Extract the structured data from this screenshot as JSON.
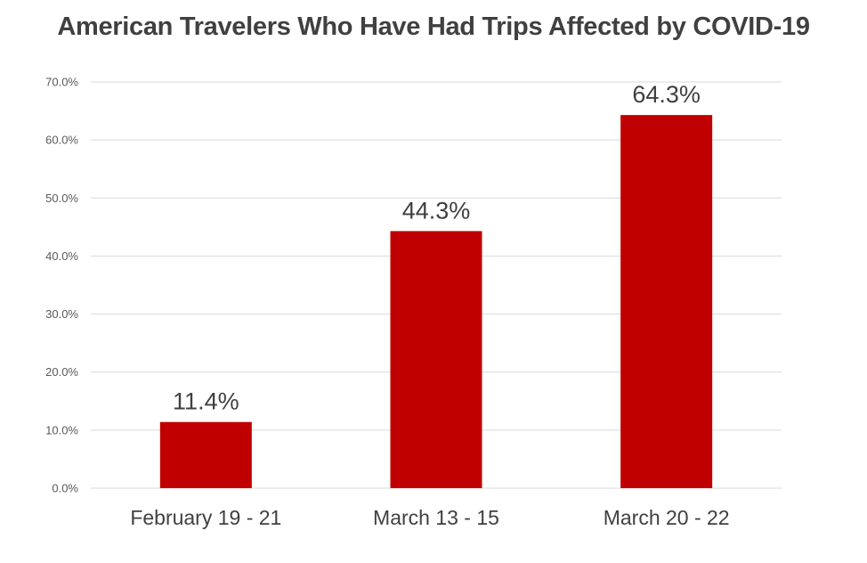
{
  "chart_data": {
    "type": "bar",
    "title": "American Travelers Who Have Had Trips Affected by COVID-19",
    "xlabel": "",
    "ylabel": "",
    "categories": [
      "February 19 - 21",
      "March 13 - 15",
      "March 20 - 22"
    ],
    "values": [
      11.4,
      44.3,
      64.3
    ],
    "data_labels": [
      "11.4%",
      "44.3%",
      "64.3%"
    ],
    "ylim": [
      0,
      70
    ],
    "yticks": [
      0,
      10,
      20,
      30,
      40,
      50,
      60,
      70
    ],
    "ytick_labels": [
      "0.0%",
      "10.0%",
      "20.0%",
      "30.0%",
      "40.0%",
      "50.0%",
      "60.0%",
      "70.0%"
    ],
    "grid": true,
    "legend": "none",
    "bar_color": "#C00000",
    "grid_color": "#D9D9D9"
  }
}
